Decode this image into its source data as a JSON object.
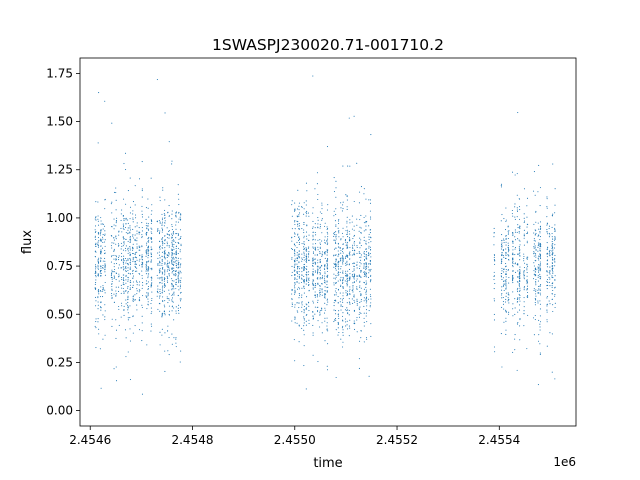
{
  "chart_data": {
    "type": "scatter",
    "title": "1SWASPJ230020.71-001710.2",
    "xlabel": "time",
    "ylabel": "flux",
    "x_offset_label": "1e6",
    "xlim": [
      2.45458,
      2.45555
    ],
    "ylim": [
      -0.08,
      1.83
    ],
    "x_ticks": [
      2.4546,
      2.4548,
      2.455,
      2.4552,
      2.4554
    ],
    "x_tick_labels": [
      "2.4546",
      "2.4548",
      "2.4550",
      "2.4552",
      "2.4554"
    ],
    "y_ticks": [
      0.0,
      0.25,
      0.5,
      0.75,
      1.0,
      1.25,
      1.5,
      1.75
    ],
    "y_tick_labels": [
      "0.00",
      "0.25",
      "0.50",
      "0.75",
      "1.00",
      "1.25",
      "1.50",
      "1.75"
    ],
    "grid": false,
    "marker_color": "#1f77b4",
    "series": [
      {
        "observing_seasons": [
          {
            "x_start": 2.45461,
            "x_end": 2.45478,
            "flux_center": 0.76
          },
          {
            "x_start": 2.45499,
            "x_end": 2.45515,
            "flux_center": 0.74
          },
          {
            "x_start": 2.45539,
            "x_end": 2.45551,
            "flux_center": 0.74
          }
        ]
      }
    ]
  }
}
